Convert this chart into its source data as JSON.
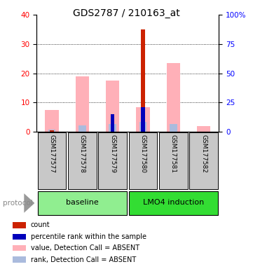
{
  "title": "GDS2787 / 210163_at",
  "samples": [
    "GSM177577",
    "GSM177578",
    "GSM177579",
    "GSM177580",
    "GSM177581",
    "GSM177582"
  ],
  "group_colors": {
    "baseline": "#90EE90",
    "LMO4 induction": "#33DD33"
  },
  "ylim_left": [
    0,
    40
  ],
  "ylim_right": [
    0,
    100
  ],
  "yticks_left": [
    0,
    10,
    20,
    30,
    40
  ],
  "yticks_right": [
    0,
    25,
    50,
    75,
    100
  ],
  "ytick_labels_right": [
    "0",
    "25",
    "50",
    "75",
    "100%"
  ],
  "pink_bars": [
    7.5,
    19.0,
    17.5,
    8.5,
    23.5,
    2.0
  ],
  "lightblue_bars": [
    1.8,
    5.5,
    6.5,
    8.5,
    6.5,
    0.0
  ],
  "red_bars": [
    0.4,
    0.0,
    6.0,
    35.0,
    0.0,
    0.0
  ],
  "blue_bars_pct": [
    0.0,
    0.0,
    15.0,
    21.0,
    0.0,
    0.0
  ],
  "colors": {
    "red": "#CC2200",
    "blue": "#0000BB",
    "pink_absent": "#FFB0B8",
    "blue_absent": "#AABBDD"
  },
  "legend_items": [
    {
      "color": "#CC2200",
      "label": "count"
    },
    {
      "color": "#0000BB",
      "label": "percentile rank within the sample"
    },
    {
      "color": "#FFB0B8",
      "label": "value, Detection Call = ABSENT"
    },
    {
      "color": "#AABBDD",
      "label": "rank, Detection Call = ABSENT"
    }
  ],
  "sample_box_color": "#C8C8C8",
  "title_fontsize": 10,
  "tick_fontsize": 7.5,
  "label_fontsize": 8
}
